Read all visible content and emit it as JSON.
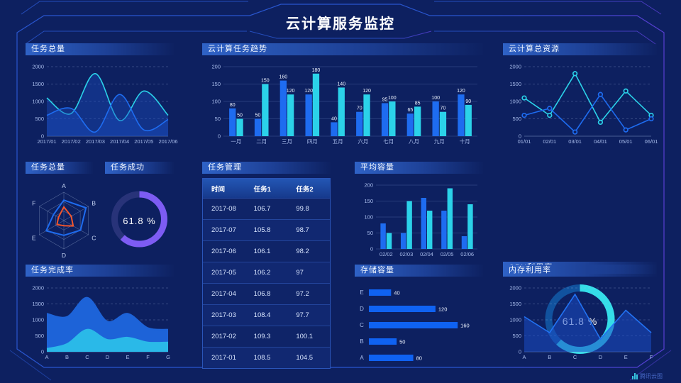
{
  "page": {
    "title": "云计算服务监控",
    "watermark": "腾讯云图",
    "bg": "#0d2060",
    "accent_blue": "#1e6cf0",
    "accent_cyan": "#2bd2e9"
  },
  "panels": {
    "task_total": {
      "title": "任务总量"
    },
    "task_trend": {
      "title": "云计算任务趋势"
    },
    "cloud_res": {
      "title": "云计算总资源"
    },
    "task_radar": {
      "title": "任务总量"
    },
    "task_success": {
      "title": "任务成功",
      "value": "61.8 %"
    },
    "task_table": {
      "title": "任务管理",
      "headers": [
        "时间",
        "任务1",
        "任务2"
      ],
      "rows": [
        [
          "2017-08",
          "106.7",
          "99.8"
        ],
        [
          "2017-07",
          "105.8",
          "98.7"
        ],
        [
          "2017-06",
          "106.1",
          "98.2"
        ],
        [
          "2017-05",
          "106.2",
          "97"
        ],
        [
          "2017-04",
          "106.8",
          "97.2"
        ],
        [
          "2017-03",
          "108.4",
          "97.7"
        ],
        [
          "2017-02",
          "109.3",
          "100.1"
        ],
        [
          "2017-01",
          "108.5",
          "104.5"
        ]
      ]
    },
    "avg_capacity": {
      "title": "平均容量"
    },
    "storage": {
      "title": "存储容量"
    },
    "cpu": {
      "title": "CPU利用率",
      "value": "61.8 %"
    },
    "completion": {
      "title": "任务完成率"
    },
    "memory": {
      "title": "内存利用率"
    }
  },
  "chart_data": [
    {
      "id": "task_total",
      "type": "area",
      "title": "任务总量",
      "smooth": true,
      "grid": "dash",
      "x": [
        "2017/01",
        "2017/02",
        "2017/03",
        "2017/04",
        "2017/05",
        "2017/06"
      ],
      "ylim": [
        0,
        2000
      ],
      "yticks": [
        0,
        500,
        1000,
        1500,
        2000
      ],
      "series": [
        {
          "name": "series-cyan",
          "color": "#2bd2e9",
          "fill": "rgba(27,77,196,0.40)",
          "values": [
            1100,
            650,
            1800,
            450,
            1300,
            600
          ]
        },
        {
          "name": "series-blue",
          "color": "#1e6cf0",
          "fill": "rgba(27,77,196,0.40)",
          "values": [
            600,
            800,
            120,
            1200,
            180,
            480
          ]
        }
      ]
    },
    {
      "id": "task_trend",
      "type": "bar",
      "title": "云计算任务趋势",
      "grid": "solid",
      "value_labels": true,
      "categories": [
        "一月",
        "二月",
        "三月",
        "四月",
        "五月",
        "六月",
        "七月",
        "八月",
        "九月",
        "十月"
      ],
      "ylim": [
        0,
        200
      ],
      "yticks": [
        0,
        50,
        100,
        150,
        200
      ],
      "series": [
        {
          "name": "任务1",
          "color": "#1e6cf0",
          "values": [
            80,
            50,
            160,
            120,
            40,
            70,
            95,
            65,
            100,
            120
          ]
        },
        {
          "name": "任务2",
          "color": "#2bd2e9",
          "values": [
            50,
            150,
            120,
            180,
            140,
            120,
            100,
            85,
            70,
            90
          ]
        }
      ]
    },
    {
      "id": "cloud_res",
      "type": "line",
      "title": "云计算总资源",
      "markers": true,
      "grid": "dash",
      "x": [
        "01/01",
        "02/01",
        "03/01",
        "04/01",
        "05/01",
        "06/01"
      ],
      "ylim": [
        0,
        2000
      ],
      "yticks": [
        0,
        500,
        1000,
        1500,
        2000
      ],
      "series": [
        {
          "name": "series-cyan",
          "color": "#2bd2e9",
          "values": [
            1100,
            600,
            1800,
            400,
            1300,
            600
          ]
        },
        {
          "name": "series-blue",
          "color": "#1e6cf0",
          "values": [
            600,
            800,
            120,
            1200,
            180,
            500
          ]
        }
      ]
    },
    {
      "id": "task_radar",
      "type": "radar",
      "title": "任务总量",
      "axes": [
        "A",
        "B",
        "C",
        "D",
        "E",
        "F"
      ],
      "max": 1,
      "series": [
        {
          "name": "blue",
          "color": "#1e6cf0",
          "values": [
            0.72,
            0.9,
            0.68,
            0.52,
            0.72,
            0.42
          ]
        },
        {
          "name": "red",
          "color": "#f2552c",
          "values": [
            0.48,
            0.3,
            0.38,
            0.18,
            0.28,
            0.22
          ]
        }
      ]
    },
    {
      "id": "task_success",
      "type": "donut",
      "title": "任务成功",
      "percent": 61.8,
      "label": "61.8 %",
      "color": "#7d5cf3",
      "track": "#283379",
      "r": 35,
      "thickness": 9
    },
    {
      "id": "avg_capacity",
      "type": "bar",
      "title": "平均容量",
      "grid": "solid",
      "value_labels": false,
      "categories": [
        "02/02",
        "02/03",
        "02/04",
        "02/05",
        "02/06"
      ],
      "ylim": [
        0,
        200
      ],
      "yticks": [
        0,
        50,
        100,
        150,
        200
      ],
      "series": [
        {
          "name": "series-blue",
          "color": "#1e6cf0",
          "values": [
            80,
            50,
            160,
            120,
            40
          ]
        },
        {
          "name": "series-cyan",
          "color": "#2bd2e9",
          "values": [
            50,
            150,
            120,
            190,
            140
          ]
        }
      ]
    },
    {
      "id": "storage",
      "type": "hbar",
      "title": "存储容量",
      "color": "#0f62f2",
      "xmax": 170,
      "categories": [
        "E",
        "D",
        "C",
        "B",
        "A"
      ],
      "values": [
        40,
        120,
        160,
        50,
        80
      ]
    },
    {
      "id": "cpu",
      "type": "donut",
      "title": "CPU利用率",
      "percent": 61.8,
      "label": "61.8 %",
      "color": "#35dde8",
      "track": "#11529e",
      "r": 44,
      "thickness": 10
    },
    {
      "id": "completion",
      "type": "stacked-area",
      "title": "任务完成率",
      "smooth": true,
      "grid": "dash",
      "x": [
        "A",
        "B",
        "C",
        "D",
        "E",
        "F",
        "G"
      ],
      "ylim": [
        0,
        2000
      ],
      "yticks": [
        0,
        500,
        1000,
        1500,
        2000
      ],
      "series": [
        {
          "name": "outer-blue",
          "color": "#1d63d8",
          "fill": "#1d63d8",
          "values": [
            1200,
            1100,
            1700,
            950,
            1200,
            750,
            700
          ]
        },
        {
          "name": "inner-cyan",
          "color": "#2ab9e8",
          "fill": "#2ab9e8",
          "values": [
            100,
            250,
            700,
            380,
            450,
            300,
            300
          ]
        }
      ]
    },
    {
      "id": "memory",
      "type": "area",
      "title": "内存利用率",
      "smooth": false,
      "grid": "dash",
      "x": [
        "A",
        "B",
        "C",
        "D",
        "E",
        "F"
      ],
      "ylim": [
        0,
        2000
      ],
      "yticks": [
        0,
        500,
        1000,
        1500,
        2000
      ],
      "series": [
        {
          "name": "series-blue",
          "color": "#2272f2",
          "fill": "rgba(27,77,196,0.55)",
          "values": [
            1100,
            600,
            1800,
            400,
            1300,
            600
          ]
        }
      ]
    }
  ]
}
